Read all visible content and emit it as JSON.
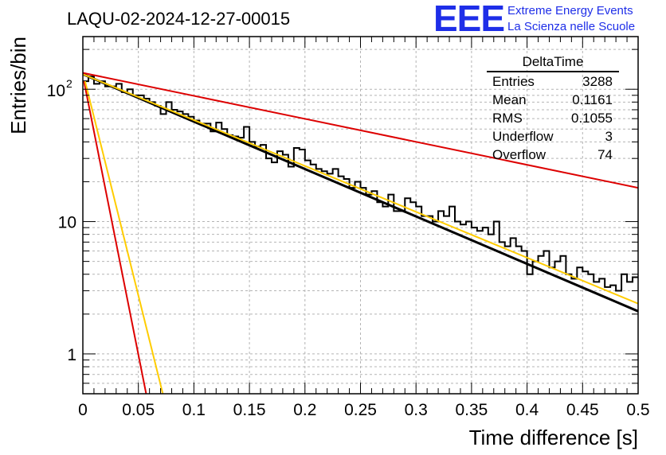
{
  "header": {
    "run_title": "LAQU-02-2024-12-27-00015",
    "logo_text": "EEE",
    "logo_line1": "Extreme Energy Events",
    "logo_line2": "La Scienza nelle Scuole",
    "logo_color": "#1e2ee8"
  },
  "stats": {
    "title": "DeltaTime",
    "rows": [
      {
        "label": "Entries",
        "value": "3288"
      },
      {
        "label": "Mean",
        "value": "0.1161"
      },
      {
        "label": "RMS",
        "value": "0.1055"
      },
      {
        "label": "Underflow",
        "value": "3"
      },
      {
        "label": "Overflow",
        "value": "74"
      }
    ]
  },
  "chart_data": {
    "type": "line",
    "xlabel": "Time difference [s]",
    "ylabel": "Entries/bin",
    "xlim": [
      0,
      0.5
    ],
    "ylim": [
      0.5,
      250
    ],
    "y_scale": "log",
    "grid": true,
    "x_ticks": [
      "0",
      "0.05",
      "0.1",
      "0.15",
      "0.2",
      "0.25",
      "0.3",
      "0.35",
      "0.4",
      "0.45",
      "0.5"
    ],
    "y_ticks": [
      {
        "value": 1,
        "label": "1"
      },
      {
        "value": 10,
        "label": "10"
      },
      {
        "value": 100,
        "label": "10",
        "exponent": "2"
      }
    ],
    "histogram": {
      "bin_width": 0.005,
      "color": "#000000",
      "values": [
        115,
        125,
        110,
        115,
        105,
        105,
        110,
        95,
        100,
        90,
        90,
        85,
        80,
        75,
        65,
        80,
        70,
        68,
        65,
        62,
        58,
        55,
        55,
        48,
        56,
        50,
        45,
        44,
        43,
        52,
        40,
        37,
        38,
        30,
        28,
        34,
        32,
        26,
        36,
        35,
        29,
        27,
        25,
        24,
        23,
        25,
        22,
        21,
        18,
        20,
        18,
        16,
        17,
        14,
        13,
        16,
        12,
        12,
        15,
        14,
        13,
        11,
        11,
        10,
        12,
        11,
        13,
        10,
        9.5,
        10,
        9,
        8.5,
        9,
        8,
        10,
        7,
        6.5,
        7.5,
        6.5,
        6,
        4,
        5,
        5.5,
        6,
        4.5,
        5,
        5.5,
        4,
        3.7,
        4.5,
        4.2,
        4,
        3.5,
        3.7,
        3.2,
        3.3,
        3.0,
        4,
        3.5,
        3.8
      ]
    },
    "series": [
      {
        "color": "#000000",
        "points": [
          [
            0,
            130
          ],
          [
            0.5,
            2.1
          ]
        ]
      },
      {
        "color": "#ffcc00",
        "points": [
          [
            0,
            130
          ],
          [
            0.5,
            2.4
          ]
        ]
      },
      {
        "color": "#dd0000",
        "points": [
          [
            0,
            133
          ],
          [
            0.5,
            18
          ]
        ]
      },
      {
        "color": "#dd0000",
        "points": [
          [
            0.001,
            115
          ],
          [
            0.057,
            0.5
          ]
        ]
      },
      {
        "color": "#ffcc00",
        "points": [
          [
            0.002,
            115
          ],
          [
            0.072,
            0.5
          ]
        ]
      }
    ]
  }
}
